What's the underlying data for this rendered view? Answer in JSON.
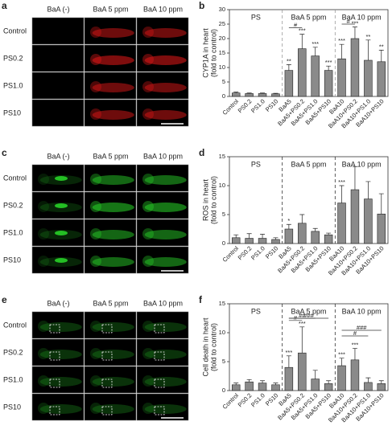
{
  "figure": {
    "panels": [
      {
        "letter": "a",
        "columns": [
          "BaA (-)",
          "BaA 5 ppm",
          "BaA 10 ppm"
        ],
        "rows": [
          "Control",
          "PS0.2",
          "PS1.0",
          "PS10"
        ],
        "color": "#e01818"
      },
      {
        "letter": "c",
        "columns": [
          "BaA (-)",
          "BaA 5 ppm",
          "BaA 10 ppm"
        ],
        "rows": [
          "Control",
          "PS0.2",
          "PS1.0",
          "PS10"
        ],
        "color": "#28d028"
      },
      {
        "letter": "e",
        "columns": [
          "BaA (-)",
          "BaA 5 ppm",
          "BaA 10 ppm"
        ],
        "rows": [
          "Control",
          "PS0.2",
          "PS1.0",
          "PS10"
        ],
        "color": "#1fa01f"
      }
    ]
  },
  "chart_data": [
    {
      "type": "bar",
      "panel_label": "b",
      "ylabel": [
        "CYP1A in heart",
        "(fold to control)"
      ],
      "categories": [
        "Control",
        "PS0.2",
        "PS1.0",
        "PS10",
        "BaA5",
        "BaA5+PS0.2",
        "BaA5+PS1.0",
        "BaA5+PS10",
        "BaA10",
        "BaA10+PS0.2",
        "BaA10+PS1.0",
        "BaA10+PS10"
      ],
      "values": [
        1.2,
        1.0,
        1.0,
        0.9,
        9,
        16.5,
        14,
        9,
        13,
        20,
        12.5,
        12
      ],
      "errors": [
        0.3,
        0.2,
        0.2,
        0.2,
        2,
        5,
        3,
        1.5,
        5,
        4,
        7,
        4
      ],
      "stars": [
        null,
        null,
        null,
        null,
        "**",
        "***",
        "***",
        "***",
        "***",
        "***",
        "**",
        "**"
      ],
      "sections": [
        {
          "label": "PS",
          "from": "Control",
          "to": "PS10"
        },
        {
          "label": "BaA 5 ppm",
          "from": "BaA5",
          "to": "BaA5+PS10"
        },
        {
          "label": "BaA 10 ppm",
          "from": "BaA10",
          "to": "BaA10+PS10"
        }
      ],
      "brackets": [
        {
          "label": "#",
          "from": "BaA5",
          "to": "BaA5+PS0.2"
        },
        {
          "label": "#",
          "from": "BaA10",
          "to": "BaA10+PS0.2"
        }
      ],
      "color": "#8a8a8a",
      "separator_color": "#999999",
      "ylim": [
        0,
        30
      ],
      "yticks": [
        0,
        5,
        10,
        15,
        20,
        25,
        30
      ]
    },
    {
      "type": "bar",
      "panel_label": "d",
      "ylabel": [
        "ROS in heart",
        "(fold to control)"
      ],
      "categories": [
        "Control",
        "PS0.2",
        "PS1.0",
        "PS10",
        "BaA5",
        "BaA5+PS0.2",
        "BaA5+PS1.0",
        "BaA5+PS10",
        "BaA10",
        "BaA10+PS0.2",
        "BaA10+PS1.0",
        "BaA10+PS10"
      ],
      "values": [
        1,
        0.9,
        0.9,
        0.7,
        2.5,
        3.5,
        2.1,
        1.5,
        7,
        9.3,
        7.7,
        5.1
      ],
      "errors": [
        0.5,
        0.8,
        0.7,
        0.3,
        0.8,
        1.5,
        0.5,
        0.3,
        3,
        4,
        3,
        3.5
      ],
      "stars": [
        null,
        null,
        null,
        null,
        "*",
        null,
        null,
        null,
        "***",
        null,
        null,
        null
      ],
      "sections": [
        {
          "label": "PS",
          "from": "Control",
          "to": "PS10"
        },
        {
          "label": "BaA 5 ppm",
          "from": "BaA5",
          "to": "BaA5+PS10"
        },
        {
          "label": "BaA 10 ppm",
          "from": "BaA10",
          "to": "BaA10+PS10"
        }
      ],
      "brackets": [],
      "color": "#8a8a8a",
      "separator_color": "#333333",
      "ylim": [
        0,
        15
      ],
      "yticks": [
        0,
        5,
        10,
        15
      ]
    },
    {
      "type": "bar",
      "panel_label": "f",
      "ylabel": [
        "Cell death in heart",
        "(fold to control)"
      ],
      "categories": [
        "Control",
        "PS0.2",
        "PS1.0",
        "PS10",
        "BaA5",
        "BaA5+PS0.2",
        "BaA5+PS1.0",
        "BaA5+PS10",
        "BaA10",
        "BaA10+PS0.2",
        "BaA10+PS1.0",
        "BaA10+PS10"
      ],
      "values": [
        1,
        1.5,
        1.3,
        1,
        4,
        6.5,
        2,
        1.2,
        4.3,
        5.3,
        1.4,
        1.2
      ],
      "errors": [
        0.3,
        0.4,
        0.4,
        0.3,
        2,
        4.5,
        1.5,
        0.5,
        1.3,
        2,
        0.8,
        0.5
      ],
      "stars": [
        null,
        null,
        null,
        null,
        "***",
        "***",
        null,
        null,
        "***",
        "***",
        null,
        null
      ],
      "sections": [
        {
          "label": "PS",
          "from": "Control",
          "to": "PS10"
        },
        {
          "label": "BaA 5 ppm",
          "from": "BaA5",
          "to": "BaA5+PS10"
        },
        {
          "label": "BaA 10 ppm",
          "from": "BaA10",
          "to": "BaA10+PS10"
        }
      ],
      "brackets": [
        {
          "label": "#",
          "from": "BaA5",
          "to": "BaA5+PS0.2"
        },
        {
          "label": "##",
          "from": "BaA5",
          "to": "BaA5+PS1.0"
        },
        {
          "label": "###",
          "from": "BaA5",
          "to": "BaA5+PS10"
        },
        {
          "label": "#",
          "from": "BaA10",
          "to": "BaA10+PS1.0"
        },
        {
          "label": "###",
          "from": "BaA10",
          "to": "BaA10+PS10"
        }
      ],
      "color": "#8a8a8a",
      "separator_color": "#333333",
      "ylim": [
        0,
        15
      ],
      "yticks": [
        0,
        5,
        10,
        15
      ]
    }
  ]
}
